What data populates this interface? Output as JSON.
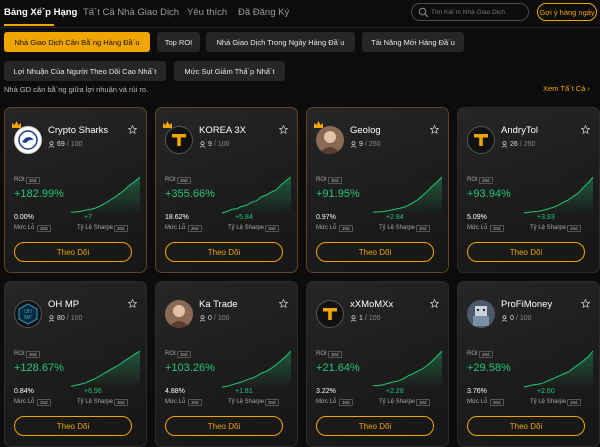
{
  "nav": {
    "tabs": [
      "Bảng Xế´p Hạng",
      "Tấ´t Cả Nhà Giao Dịch",
      "Yêu thích",
      "Đã Đăng Ký"
    ],
    "active_tab": 0,
    "search_placeholder": "Tìm Kiế´m Nhà Giao Dịch",
    "suggest_label": "Gợi ý hàng ngày"
  },
  "filters": [
    "Nhà Giao Dịch Cân Bằ´ng Hàng Đầ´u",
    "Top ROI",
    "Nhà Giao Dịch Trong Ngày Hàng Đầ´u",
    "Tài Năng Mới Hàng Đầ´u",
    "Lợi Nhuận Của Người Theo Dõi Cao Nhấ´t",
    "Mức Sụt Giảm Thấ´p Nhấ´t"
  ],
  "active_filter": 0,
  "section": {
    "subtitle": "Nhà GD cân bằ´ng giữa lợi nhuận và rủi ro.",
    "see_all": "Xem Tấ´t Cả"
  },
  "labels": {
    "roi": "ROI",
    "period": "30d",
    "drawdown": "Mức Lỗ",
    "sharpe": "Tỷ Lệ Sharpe",
    "follow": "Theo Dõi"
  },
  "colors": {
    "accent": "#f0a500",
    "positive": "#24c57a",
    "background": "#0c0c0c",
    "card": "#1f1f1f"
  },
  "traders": [
    {
      "name": "Crypto Sharks",
      "copiers": "69",
      "capacity": "100",
      "roi": "+182.99%",
      "drawdown": "0.00%",
      "sharpe": "+7",
      "avatar_icon": "crypto-sharks-logo-icon",
      "crown": true,
      "spark": [
        0.02,
        0.03,
        0.05,
        0.08,
        0.1,
        0.14,
        0.2,
        0.28,
        0.36,
        0.45,
        0.55,
        0.66,
        0.78,
        0.88,
        1.0
      ]
    },
    {
      "name": "KOREA 3X",
      "copiers": "9",
      "capacity": "100",
      "roi": "+355.66%",
      "drawdown": "18.62%",
      "sharpe": "+5.84",
      "avatar_icon": "letter-t-logo-icon",
      "crown": true,
      "spark": [
        0.0,
        0.04,
        0.1,
        0.12,
        0.18,
        0.22,
        0.3,
        0.34,
        0.45,
        0.5,
        0.58,
        0.64,
        0.78,
        0.9,
        1.0
      ]
    },
    {
      "name": "Geolog",
      "copiers": "9",
      "capacity": "250",
      "roi": "+91.95%",
      "drawdown": "0.97%",
      "sharpe": "+2.84",
      "avatar_icon": "person-photo-icon",
      "crown": true,
      "spark": [
        0.02,
        0.03,
        0.04,
        0.06,
        0.09,
        0.12,
        0.15,
        0.2,
        0.28,
        0.36,
        0.48,
        0.6,
        0.74,
        0.86,
        1.0
      ]
    },
    {
      "name": "AndryTol",
      "copiers": "26",
      "capacity": "250",
      "roi": "+93.94%",
      "drawdown": "5.09%",
      "sharpe": "+3.93",
      "avatar_icon": "letter-t-logo-icon",
      "crown": false,
      "spark": [
        0.0,
        0.02,
        0.04,
        0.05,
        0.08,
        0.12,
        0.16,
        0.22,
        0.3,
        0.36,
        0.46,
        0.55,
        0.7,
        0.84,
        1.0
      ]
    },
    {
      "name": "OH MP",
      "copiers": "80",
      "capacity": "100",
      "roi": "+128.67%",
      "drawdown": "0.84%",
      "sharpe": "+6.96",
      "avatar_icon": "ohmp-logo-icon",
      "crown": false,
      "spark": [
        0.02,
        0.05,
        0.08,
        0.12,
        0.18,
        0.24,
        0.32,
        0.4,
        0.48,
        0.56,
        0.64,
        0.74,
        0.82,
        0.92,
        1.0
      ]
    },
    {
      "name": "Ka Trade",
      "copiers": "0",
      "capacity": "100",
      "roi": "+103.26%",
      "drawdown": "4.88%",
      "sharpe": "+1.81",
      "avatar_icon": "person-photo-icon",
      "crown": false,
      "spark": [
        0.0,
        0.02,
        0.06,
        0.1,
        0.14,
        0.2,
        0.24,
        0.3,
        0.38,
        0.44,
        0.52,
        0.62,
        0.74,
        0.86,
        1.0
      ]
    },
    {
      "name": "xXMoMXx",
      "copiers": "1",
      "capacity": "100",
      "roi": "+21.64%",
      "drawdown": "3.22%",
      "sharpe": "+2.28",
      "avatar_icon": "letter-t-logo-icon",
      "crown": false,
      "spark": [
        0.04,
        0.04,
        0.06,
        0.1,
        0.14,
        0.16,
        0.22,
        0.3,
        0.36,
        0.44,
        0.5,
        0.6,
        0.72,
        0.86,
        1.0
      ]
    },
    {
      "name": "ProFiMoney",
      "copiers": "0",
      "capacity": "100",
      "roi": "+29.58%",
      "drawdown": "3.76%",
      "sharpe": "+2.60",
      "avatar_icon": "pixel-avatar-icon",
      "crown": false,
      "spark": [
        0.0,
        0.03,
        0.06,
        0.08,
        0.12,
        0.18,
        0.24,
        0.3,
        0.36,
        0.42,
        0.52,
        0.62,
        0.72,
        0.84,
        1.0
      ]
    }
  ]
}
